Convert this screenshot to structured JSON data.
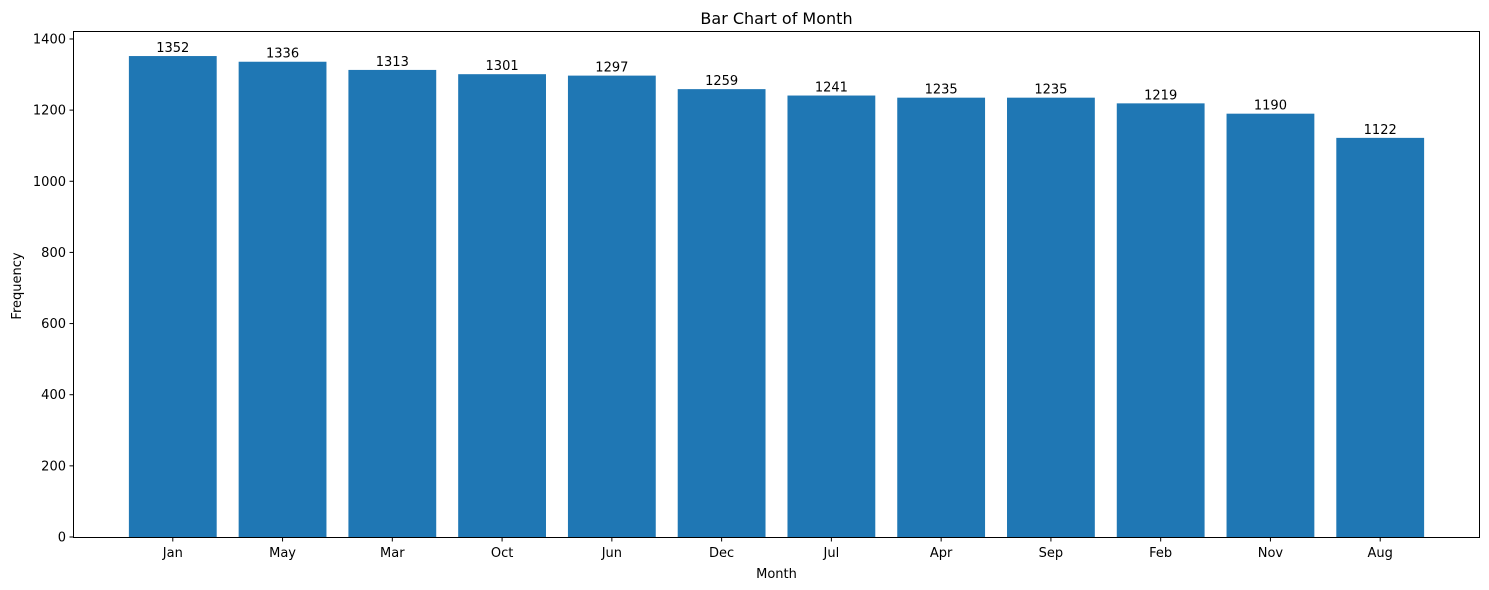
{
  "chart_data": {
    "type": "bar",
    "title": "Bar Chart of Month",
    "xlabel": "Month",
    "ylabel": "Frequency",
    "categories": [
      "Jan",
      "May",
      "Mar",
      "Oct",
      "Jun",
      "Dec",
      "Jul",
      "Apr",
      "Sep",
      "Feb",
      "Nov",
      "Aug"
    ],
    "values": [
      1352,
      1336,
      1313,
      1301,
      1297,
      1259,
      1241,
      1235,
      1235,
      1219,
      1190,
      1122
    ],
    "data_labels": [
      "1352",
      "1336",
      "1313",
      "1301",
      "1297",
      "1259",
      "1241",
      "1235",
      "1235",
      "1219",
      "1190",
      "1122"
    ],
    "yticks": [
      0,
      200,
      400,
      600,
      800,
      1000,
      1200,
      1400
    ],
    "ylim": [
      0,
      1419.6
    ],
    "grid": false,
    "bar_color": "#1f77b4"
  }
}
